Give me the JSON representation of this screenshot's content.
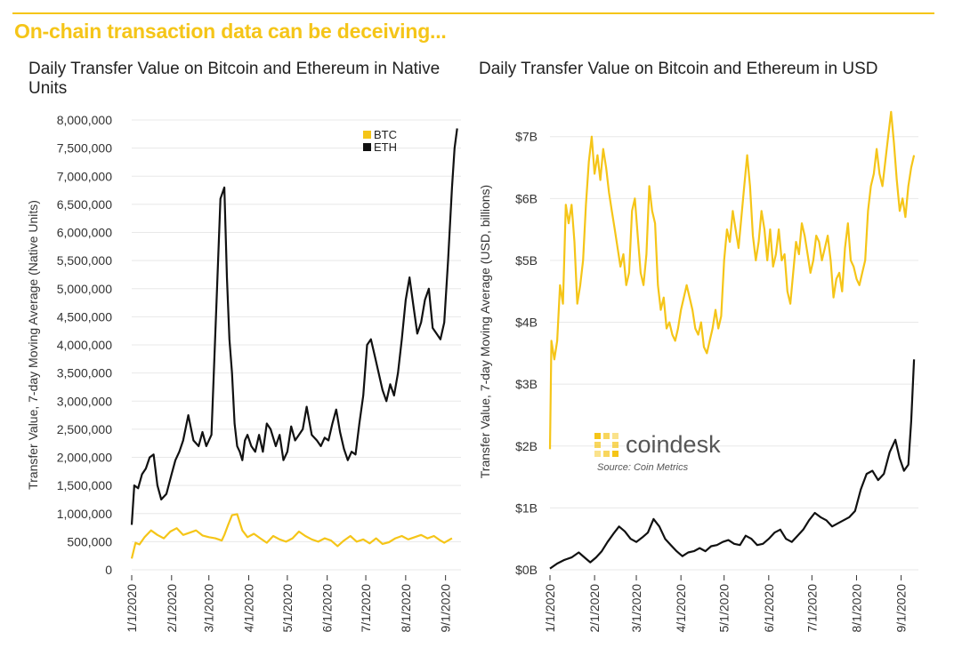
{
  "headline": "On-chain transaction data can be deceiving...",
  "colors": {
    "btc": "#f5c518",
    "eth": "#111111",
    "accent": "#f5c518",
    "grid": "#e8e8e8"
  },
  "brand": {
    "name": "coindesk",
    "source": "Source: Coin Metrics"
  },
  "chart_data": [
    {
      "type": "line",
      "title": "Daily Transfer Value on Bitcoin and Ethereum in Native Units",
      "xlabel": "",
      "ylabel": "Transfer Value, 7-day Moving Average (Native Units)",
      "ylim": [
        0,
        8000000
      ],
      "yticks": [
        0,
        500000,
        1000000,
        1500000,
        2000000,
        2500000,
        3000000,
        3500000,
        4000000,
        4500000,
        5000000,
        5500000,
        6000000,
        6500000,
        7000000,
        7500000,
        8000000
      ],
      "ytick_labels": [
        "0",
        "500,000",
        "1,000,000",
        "1,500,000",
        "2,000,000",
        "2,500,000",
        "3,000,000",
        "3,500,000",
        "4,000,000",
        "4,500,000",
        "5,000,000",
        "5,500,000",
        "6,000,000",
        "6,500,000",
        "7,000,000",
        "7,500,000",
        "8,000,000"
      ],
      "xlim": [
        0,
        256
      ],
      "xticks": [
        0,
        31,
        60,
        91,
        121,
        152,
        182,
        213,
        244
      ],
      "xtick_labels": [
        "1/1/2020",
        "2/1/2020",
        "3/1/2020",
        "4/1/2020",
        "5/1/2020",
        "6/1/2020",
        "7/1/2020",
        "8/1/2020",
        "9/1/2020"
      ],
      "legend": {
        "position": "top-right",
        "entries": [
          "BTC",
          "ETH"
        ]
      },
      "series": [
        {
          "name": "BTC",
          "x": [
            0,
            3,
            6,
            10,
            15,
            20,
            25,
            30,
            35,
            40,
            45,
            50,
            55,
            60,
            65,
            70,
            72,
            75,
            78,
            82,
            86,
            90,
            95,
            100,
            105,
            110,
            115,
            120,
            125,
            130,
            135,
            140,
            145,
            150,
            155,
            160,
            165,
            170,
            175,
            180,
            185,
            190,
            195,
            200,
            205,
            210,
            215,
            220,
            225,
            230,
            235,
            240,
            243,
            246,
            249
          ],
          "y": [
            200000,
            480000,
            450000,
            580000,
            700000,
            620000,
            560000,
            680000,
            740000,
            620000,
            660000,
            700000,
            610000,
            580000,
            560000,
            520000,
            620000,
            800000,
            970000,
            990000,
            700000,
            580000,
            640000,
            560000,
            480000,
            600000,
            540000,
            500000,
            560000,
            680000,
            600000,
            540000,
            500000,
            560000,
            520000,
            420000,
            520000,
            600000,
            500000,
            540000,
            470000,
            560000,
            460000,
            490000,
            560000,
            600000,
            540000,
            580000,
            620000,
            560000,
            600000,
            520000,
            480000,
            520000,
            560000
          ]
        },
        {
          "name": "ETH",
          "x": [
            0,
            2,
            5,
            8,
            11,
            14,
            17,
            20,
            23,
            27,
            31,
            34,
            37,
            40,
            44,
            48,
            52,
            55,
            58,
            62,
            66,
            69,
            72,
            74,
            76,
            78,
            80,
            82,
            84,
            86,
            88,
            90,
            93,
            96,
            99,
            102,
            105,
            108,
            112,
            115,
            118,
            121,
            124,
            127,
            130,
            133,
            136,
            140,
            144,
            147,
            150,
            153,
            156,
            159,
            162,
            165,
            168,
            171,
            174,
            177,
            180,
            183,
            186,
            189,
            192,
            195,
            198,
            201,
            204,
            207,
            210,
            213,
            216,
            219,
            222,
            225,
            228,
            231,
            234,
            237,
            240,
            243,
            246,
            249,
            251,
            253
          ],
          "y": [
            800000,
            1500000,
            1450000,
            1700000,
            1800000,
            2000000,
            2050000,
            1500000,
            1250000,
            1350000,
            1700000,
            1950000,
            2100000,
            2300000,
            2750000,
            2300000,
            2200000,
            2450000,
            2200000,
            2400000,
            4800000,
            6600000,
            6800000,
            5200000,
            4100000,
            3500000,
            2600000,
            2200000,
            2100000,
            1950000,
            2300000,
            2400000,
            2200000,
            2100000,
            2400000,
            2100000,
            2600000,
            2500000,
            2200000,
            2400000,
            1950000,
            2100000,
            2550000,
            2300000,
            2400000,
            2500000,
            2900000,
            2400000,
            2300000,
            2200000,
            2350000,
            2300000,
            2600000,
            2850000,
            2450000,
            2150000,
            1950000,
            2100000,
            2050000,
            2600000,
            3100000,
            4000000,
            4100000,
            3800000,
            3500000,
            3200000,
            3000000,
            3300000,
            3100000,
            3500000,
            4100000,
            4800000,
            5200000,
            4700000,
            4200000,
            4400000,
            4800000,
            5000000,
            4300000,
            4200000,
            4100000,
            4400000,
            5500000,
            6800000,
            7500000,
            7850000
          ]
        }
      ]
    },
    {
      "type": "line",
      "title": "Daily Transfer Value on Bitcoin and Ethereum in USD",
      "xlabel": "",
      "ylabel": "Transfer Value, 7-day Moving Average (USD, billions)",
      "ylim": [
        0,
        7.7
      ],
      "yticks": [
        0,
        1,
        2,
        3,
        4,
        5,
        6,
        7
      ],
      "ytick_labels": [
        "$0B",
        "$1B",
        "$2B",
        "$3B",
        "$4B",
        "$5B",
        "$6B",
        "$7B"
      ],
      "xlim": [
        0,
        256
      ],
      "xticks": [
        0,
        31,
        60,
        91,
        121,
        152,
        182,
        213,
        244
      ],
      "xtick_labels": [
        "1/1/2020",
        "2/1/2020",
        "3/1/2020",
        "4/1/2020",
        "5/1/2020",
        "6/1/2020",
        "7/1/2020",
        "8/1/2020",
        "9/1/2020"
      ],
      "series": [
        {
          "name": "BTC",
          "x": [
            0,
            1,
            3,
            5,
            7,
            9,
            11,
            13,
            15,
            17,
            19,
            21,
            23,
            25,
            27,
            29,
            31,
            33,
            35,
            37,
            39,
            41,
            43,
            45,
            47,
            49,
            51,
            53,
            55,
            57,
            59,
            61,
            63,
            65,
            67,
            69,
            71,
            73,
            75,
            77,
            79,
            81,
            83,
            85,
            87,
            89,
            91,
            93,
            95,
            97,
            99,
            101,
            103,
            105,
            107,
            109,
            111,
            113,
            115,
            117,
            119,
            121,
            123,
            125,
            127,
            129,
            131,
            133,
            135,
            137,
            139,
            141,
            143,
            145,
            147,
            149,
            151,
            153,
            155,
            157,
            159,
            161,
            163,
            165,
            167,
            169,
            171,
            173,
            175,
            177,
            179,
            181,
            183,
            185,
            187,
            189,
            191,
            193,
            195,
            197,
            199,
            201,
            203,
            205,
            207,
            209,
            211,
            213,
            215,
            217,
            219,
            221,
            223,
            225,
            227,
            229,
            231,
            233,
            235,
            237,
            239,
            241,
            243,
            245,
            247,
            249,
            251,
            253
          ],
          "y": [
            1.95,
            3.7,
            3.4,
            3.7,
            4.6,
            4.3,
            5.9,
            5.6,
            5.9,
            5.3,
            4.3,
            4.6,
            5.0,
            5.9,
            6.6,
            7.0,
            6.4,
            6.7,
            6.3,
            6.8,
            6.5,
            6.1,
            5.8,
            5.5,
            5.2,
            4.9,
            5.1,
            4.6,
            4.8,
            5.8,
            6.0,
            5.4,
            4.8,
            4.6,
            5.1,
            6.2,
            5.8,
            5.6,
            4.6,
            4.2,
            4.4,
            3.9,
            4.0,
            3.8,
            3.7,
            3.9,
            4.2,
            4.4,
            4.6,
            4.4,
            4.2,
            3.9,
            3.8,
            4.0,
            3.6,
            3.5,
            3.7,
            3.9,
            4.2,
            3.9,
            4.1,
            5.0,
            5.5,
            5.3,
            5.8,
            5.5,
            5.2,
            5.7,
            6.2,
            6.7,
            6.2,
            5.4,
            5.0,
            5.3,
            5.8,
            5.5,
            5.0,
            5.5,
            4.9,
            5.1,
            5.5,
            5.0,
            5.1,
            4.5,
            4.3,
            4.8,
            5.3,
            5.1,
            5.6,
            5.4,
            5.1,
            4.8,
            5.0,
            5.4,
            5.3,
            5.0,
            5.2,
            5.4,
            5.0,
            4.4,
            4.7,
            4.8,
            4.5,
            5.2,
            5.6,
            5.0,
            4.9,
            4.7,
            4.6,
            4.8,
            5.0,
            5.8,
            6.2,
            6.4,
            6.8,
            6.4,
            6.2,
            6.6,
            7.0,
            7.4,
            6.9,
            6.3,
            5.8,
            6.0,
            5.7,
            6.2,
            6.5,
            6.7
          ]
        },
        {
          "name": "ETH",
          "x": [
            0,
            5,
            10,
            15,
            20,
            25,
            28,
            32,
            36,
            40,
            44,
            48,
            52,
            56,
            60,
            64,
            68,
            72,
            76,
            80,
            84,
            88,
            92,
            96,
            100,
            104,
            108,
            112,
            116,
            120,
            124,
            128,
            132,
            136,
            140,
            144,
            148,
            152,
            156,
            160,
            164,
            168,
            172,
            176,
            180,
            184,
            188,
            192,
            196,
            200,
            204,
            208,
            212,
            216,
            220,
            224,
            228,
            232,
            236,
            240,
            243,
            246,
            249,
            251,
            253
          ],
          "y": [
            0.02,
            0.1,
            0.16,
            0.2,
            0.28,
            0.18,
            0.12,
            0.2,
            0.3,
            0.45,
            0.58,
            0.7,
            0.62,
            0.5,
            0.45,
            0.52,
            0.6,
            0.82,
            0.7,
            0.5,
            0.4,
            0.3,
            0.22,
            0.28,
            0.3,
            0.35,
            0.3,
            0.38,
            0.4,
            0.45,
            0.48,
            0.42,
            0.4,
            0.55,
            0.5,
            0.4,
            0.42,
            0.5,
            0.6,
            0.65,
            0.5,
            0.45,
            0.55,
            0.65,
            0.8,
            0.92,
            0.85,
            0.8,
            0.7,
            0.75,
            0.8,
            0.85,
            0.95,
            1.3,
            1.55,
            1.6,
            1.45,
            1.55,
            1.9,
            2.1,
            1.8,
            1.6,
            1.7,
            2.4,
            3.4
          ]
        }
      ]
    }
  ]
}
